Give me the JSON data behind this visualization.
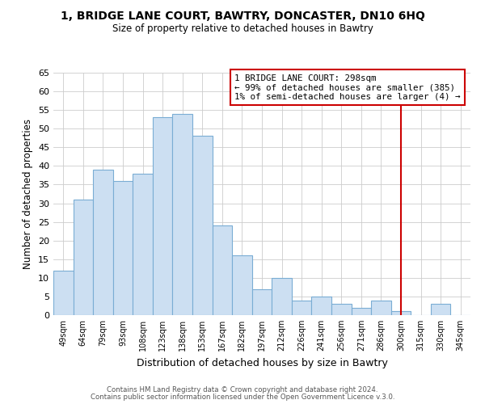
{
  "title": "1, BRIDGE LANE COURT, BAWTRY, DONCASTER, DN10 6HQ",
  "subtitle": "Size of property relative to detached houses in Bawtry",
  "xlabel": "Distribution of detached houses by size in Bawtry",
  "ylabel": "Number of detached properties",
  "bar_labels": [
    "49sqm",
    "64sqm",
    "79sqm",
    "93sqm",
    "108sqm",
    "123sqm",
    "138sqm",
    "153sqm",
    "167sqm",
    "182sqm",
    "197sqm",
    "212sqm",
    "226sqm",
    "241sqm",
    "256sqm",
    "271sqm",
    "286sqm",
    "300sqm",
    "315sqm",
    "330sqm",
    "345sqm"
  ],
  "bar_values": [
    12,
    31,
    39,
    36,
    38,
    53,
    54,
    48,
    24,
    16,
    7,
    10,
    4,
    5,
    3,
    2,
    4,
    1,
    0,
    3,
    0
  ],
  "bar_color": "#ccdff2",
  "bar_edge_color": "#7aadd4",
  "vline_x_index": 17,
  "vline_color": "#cc0000",
  "annotation_title": "1 BRIDGE LANE COURT: 298sqm",
  "annotation_line1": "← 99% of detached houses are smaller (385)",
  "annotation_line2": "1% of semi-detached houses are larger (4) →",
  "annotation_box_color": "#cc0000",
  "ylim": [
    0,
    65
  ],
  "yticks": [
    0,
    5,
    10,
    15,
    20,
    25,
    30,
    35,
    40,
    45,
    50,
    55,
    60,
    65
  ],
  "footer1": "Contains HM Land Registry data © Crown copyright and database right 2024.",
  "footer2": "Contains public sector information licensed under the Open Government Licence v.3.0.",
  "bg_color": "#ffffff",
  "grid_color": "#cccccc"
}
